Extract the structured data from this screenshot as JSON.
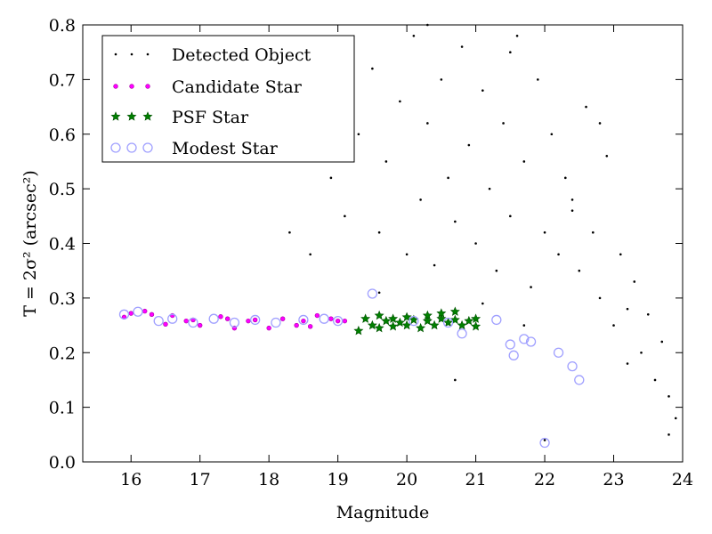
{
  "chart_data": {
    "type": "scatter",
    "title": "",
    "xlabel": "Magnitude",
    "ylabel": "T = 2σ² (arcsec²)",
    "xlim": [
      15.3,
      24.0
    ],
    "ylim": [
      0.0,
      0.8
    ],
    "xticks": [
      "16",
      "17",
      "18",
      "19",
      "20",
      "21",
      "22",
      "23",
      "24"
    ],
    "yticks": [
      "0.0",
      "0.1",
      "0.2",
      "0.3",
      "0.4",
      "0.5",
      "0.6",
      "0.7",
      "0.8"
    ],
    "grid": false,
    "legend_placement": "upper-left",
    "colors": {
      "detected": "#000000",
      "candidate": "#ff00ff",
      "psf": "#008000",
      "modest": "#a0a0ff"
    },
    "series": [
      {
        "name": "Detected Object",
        "marker": "dot",
        "x": [
          18.6,
          18.9,
          19.1,
          19.3,
          19.5,
          19.6,
          19.7,
          19.9,
          20.0,
          20.1,
          20.2,
          20.3,
          20.4,
          20.5,
          20.6,
          20.7,
          20.8,
          20.9,
          21.0,
          21.1,
          21.2,
          21.3,
          21.4,
          21.5,
          21.6,
          21.7,
          21.8,
          21.9,
          22.0,
          22.1,
          22.2,
          22.3,
          22.4,
          22.5,
          22.6,
          22.7,
          22.8,
          22.9,
          23.0,
          23.1,
          23.2,
          23.3,
          23.4,
          23.5,
          23.6,
          23.7,
          23.8,
          23.9,
          20.7,
          22.0,
          21.5,
          22.8,
          23.2,
          23.8,
          21.1,
          22.4,
          19.6,
          18.3,
          20.3,
          21.7
        ],
        "y": [
          0.38,
          0.52,
          0.45,
          0.6,
          0.72,
          0.42,
          0.55,
          0.66,
          0.38,
          0.78,
          0.48,
          0.62,
          0.36,
          0.7,
          0.52,
          0.44,
          0.76,
          0.58,
          0.4,
          0.68,
          0.5,
          0.35,
          0.62,
          0.45,
          0.78,
          0.55,
          0.32,
          0.7,
          0.42,
          0.6,
          0.38,
          0.52,
          0.46,
          0.35,
          0.65,
          0.42,
          0.3,
          0.56,
          0.25,
          0.38,
          0.28,
          0.33,
          0.2,
          0.27,
          0.15,
          0.22,
          0.12,
          0.08,
          0.15,
          0.04,
          0.75,
          0.62,
          0.18,
          0.05,
          0.29,
          0.48,
          0.31,
          0.42,
          0.8,
          0.25
        ]
      },
      {
        "name": "Candidate Star",
        "marker": "small-circle",
        "x": [
          15.9,
          16.0,
          16.2,
          16.3,
          16.5,
          16.6,
          16.8,
          16.9,
          17.0,
          17.3,
          17.4,
          17.5,
          17.7,
          17.8,
          18.0,
          18.2,
          18.4,
          18.5,
          18.6,
          18.7,
          18.9,
          19.0,
          19.1
        ],
        "y": [
          0.265,
          0.272,
          0.276,
          0.27,
          0.252,
          0.268,
          0.258,
          0.26,
          0.25,
          0.266,
          0.262,
          0.245,
          0.258,
          0.26,
          0.245,
          0.262,
          0.25,
          0.258,
          0.248,
          0.268,
          0.262,
          0.258,
          0.258
        ]
      },
      {
        "name": "PSF Star",
        "marker": "star",
        "x": [
          19.3,
          19.4,
          19.5,
          19.6,
          19.6,
          19.7,
          19.8,
          19.8,
          19.9,
          20.0,
          20.0,
          20.1,
          20.2,
          20.3,
          20.3,
          20.4,
          20.5,
          20.5,
          20.6,
          20.7,
          20.7,
          20.8,
          20.9,
          21.0,
          21.0
        ],
        "y": [
          0.24,
          0.262,
          0.25,
          0.268,
          0.245,
          0.258,
          0.262,
          0.248,
          0.255,
          0.265,
          0.25,
          0.26,
          0.245,
          0.258,
          0.268,
          0.25,
          0.262,
          0.272,
          0.255,
          0.26,
          0.275,
          0.25,
          0.258,
          0.262,
          0.248
        ]
      },
      {
        "name": "Modest Star",
        "marker": "open-circle",
        "x": [
          15.9,
          16.1,
          16.4,
          16.6,
          16.9,
          17.2,
          17.5,
          17.8,
          18.1,
          18.5,
          18.8,
          19.0,
          19.5,
          20.1,
          20.6,
          20.8,
          21.3,
          21.5,
          21.55,
          21.7,
          21.8,
          22.0,
          22.2,
          22.4,
          22.5
        ],
        "y": [
          0.27,
          0.275,
          0.258,
          0.262,
          0.255,
          0.262,
          0.255,
          0.26,
          0.255,
          0.26,
          0.262,
          0.258,
          0.308,
          0.258,
          0.255,
          0.235,
          0.26,
          0.215,
          0.195,
          0.225,
          0.22,
          0.035,
          0.2,
          0.175,
          0.15
        ]
      }
    ]
  }
}
